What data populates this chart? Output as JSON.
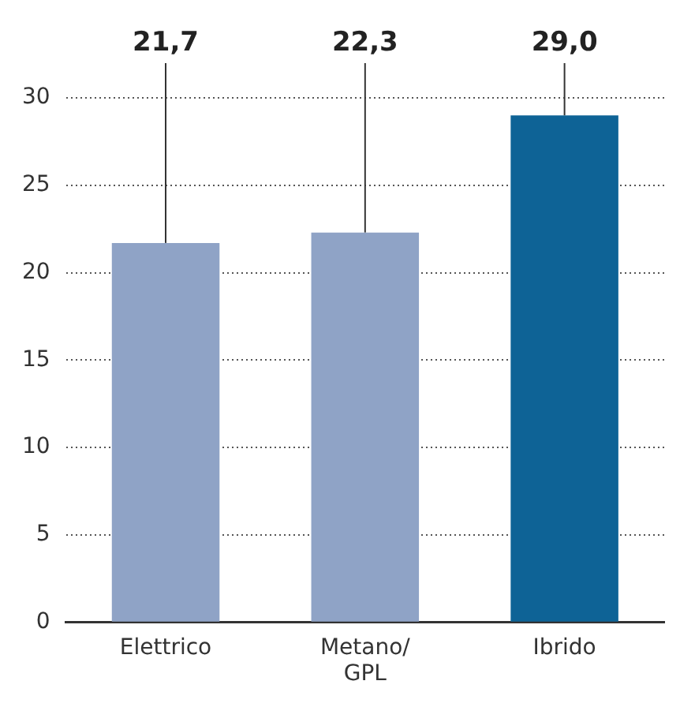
{
  "chart_data": {
    "type": "bar",
    "categories": [
      "Elettrico",
      "Metano/GPL",
      "Ibrido"
    ],
    "values": [
      21.7,
      22.3,
      29.0
    ],
    "colors": [
      "#8fa3c6",
      "#8fa3c6",
      "#0e6396"
    ],
    "value_labels": [
      "21,7",
      "22,3",
      "29,0"
    ],
    "ylim": [
      0,
      30
    ],
    "yticks": [
      0,
      5,
      10,
      15,
      20,
      25,
      30
    ],
    "grid": "y"
  }
}
